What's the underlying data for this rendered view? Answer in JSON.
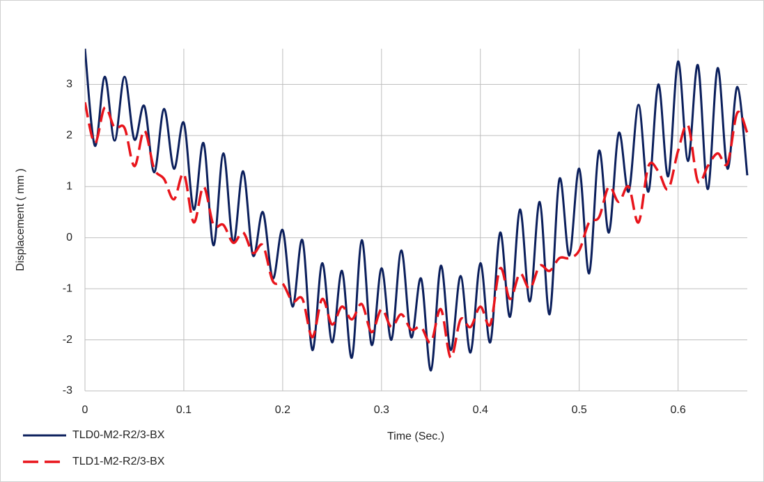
{
  "chart_data": {
    "type": "line",
    "x_label": "Time (Sec.)",
    "y_label": "Displacement ( mm )",
    "x": [
      0,
      0.01,
      0.02,
      0.03,
      0.04,
      0.05,
      0.06,
      0.07,
      0.08,
      0.09,
      0.1,
      0.11,
      0.12,
      0.13,
      0.14,
      0.15,
      0.16,
      0.17,
      0.18,
      0.19,
      0.2,
      0.21,
      0.22,
      0.23,
      0.24,
      0.25,
      0.26,
      0.27,
      0.28,
      0.29,
      0.3,
      0.31,
      0.32,
      0.33,
      0.34,
      0.35,
      0.36,
      0.37,
      0.38,
      0.39,
      0.4,
      0.41,
      0.42,
      0.43,
      0.44,
      0.45,
      0.46,
      0.47,
      0.48,
      0.49,
      0.5,
      0.51,
      0.52,
      0.53,
      0.54,
      0.55,
      0.56,
      0.57,
      0.58,
      0.59,
      0.6,
      0.61,
      0.62,
      0.63,
      0.64,
      0.65,
      0.66,
      0.67
    ],
    "series": [
      {
        "name": "TLD0-M2-R2/3-BX",
        "color": "#0b1f5c",
        "dash": false,
        "values": [
          3.7,
          1.8,
          3.15,
          1.9,
          3.15,
          1.92,
          2.58,
          1.28,
          2.52,
          1.35,
          2.25,
          0.55,
          1.85,
          -0.15,
          1.65,
          -0.1,
          1.3,
          -0.35,
          0.5,
          -0.8,
          0.15,
          -1.35,
          -0.05,
          -2.2,
          -0.5,
          -2.05,
          -0.65,
          -2.35,
          -0.05,
          -2.1,
          -0.6,
          -2.0,
          -0.25,
          -1.95,
          -0.8,
          -2.6,
          -0.55,
          -2.2,
          -0.75,
          -2.25,
          -0.5,
          -2.05,
          0.1,
          -1.55,
          0.55,
          -1.25,
          0.7,
          -1.5,
          1.15,
          -0.35,
          1.35,
          -0.7,
          1.7,
          0.1,
          2.05,
          0.9,
          2.6,
          0.9,
          3.0,
          1.2,
          3.45,
          1.5,
          3.38,
          0.95,
          3.32,
          1.35,
          2.95,
          1.22
        ]
      },
      {
        "name": "TLD1-M2-R2/3-BX",
        "color": "#e8141b",
        "dash": true,
        "values": [
          2.65,
          1.85,
          2.55,
          2.15,
          2.15,
          1.4,
          2.1,
          1.35,
          1.15,
          0.75,
          1.25,
          0.3,
          1.0,
          0.25,
          0.25,
          -0.1,
          0.1,
          -0.3,
          -0.15,
          -0.85,
          -0.9,
          -1.25,
          -1.2,
          -1.95,
          -1.2,
          -1.7,
          -1.35,
          -1.6,
          -1.3,
          -1.85,
          -1.4,
          -1.75,
          -1.5,
          -1.8,
          -1.75,
          -2.05,
          -1.4,
          -2.35,
          -1.6,
          -1.75,
          -1.35,
          -1.7,
          -0.6,
          -1.2,
          -0.7,
          -1.0,
          -0.55,
          -0.65,
          -0.4,
          -0.4,
          -0.25,
          0.3,
          0.4,
          1.0,
          0.7,
          1.0,
          0.3,
          1.4,
          1.3,
          0.95,
          1.7,
          2.2,
          1.1,
          1.4,
          1.65,
          1.45,
          2.45,
          2.05
        ]
      }
    ],
    "xlim": [
      0,
      0.67
    ],
    "ylim": [
      -3,
      3.7
    ],
    "xticks": [
      0,
      0.1,
      0.2,
      0.3,
      0.4,
      0.5,
      0.6
    ],
    "yticks": [
      -3,
      -2,
      -1,
      0,
      1,
      2,
      3
    ],
    "grid": true,
    "legend": "bottom-left"
  }
}
